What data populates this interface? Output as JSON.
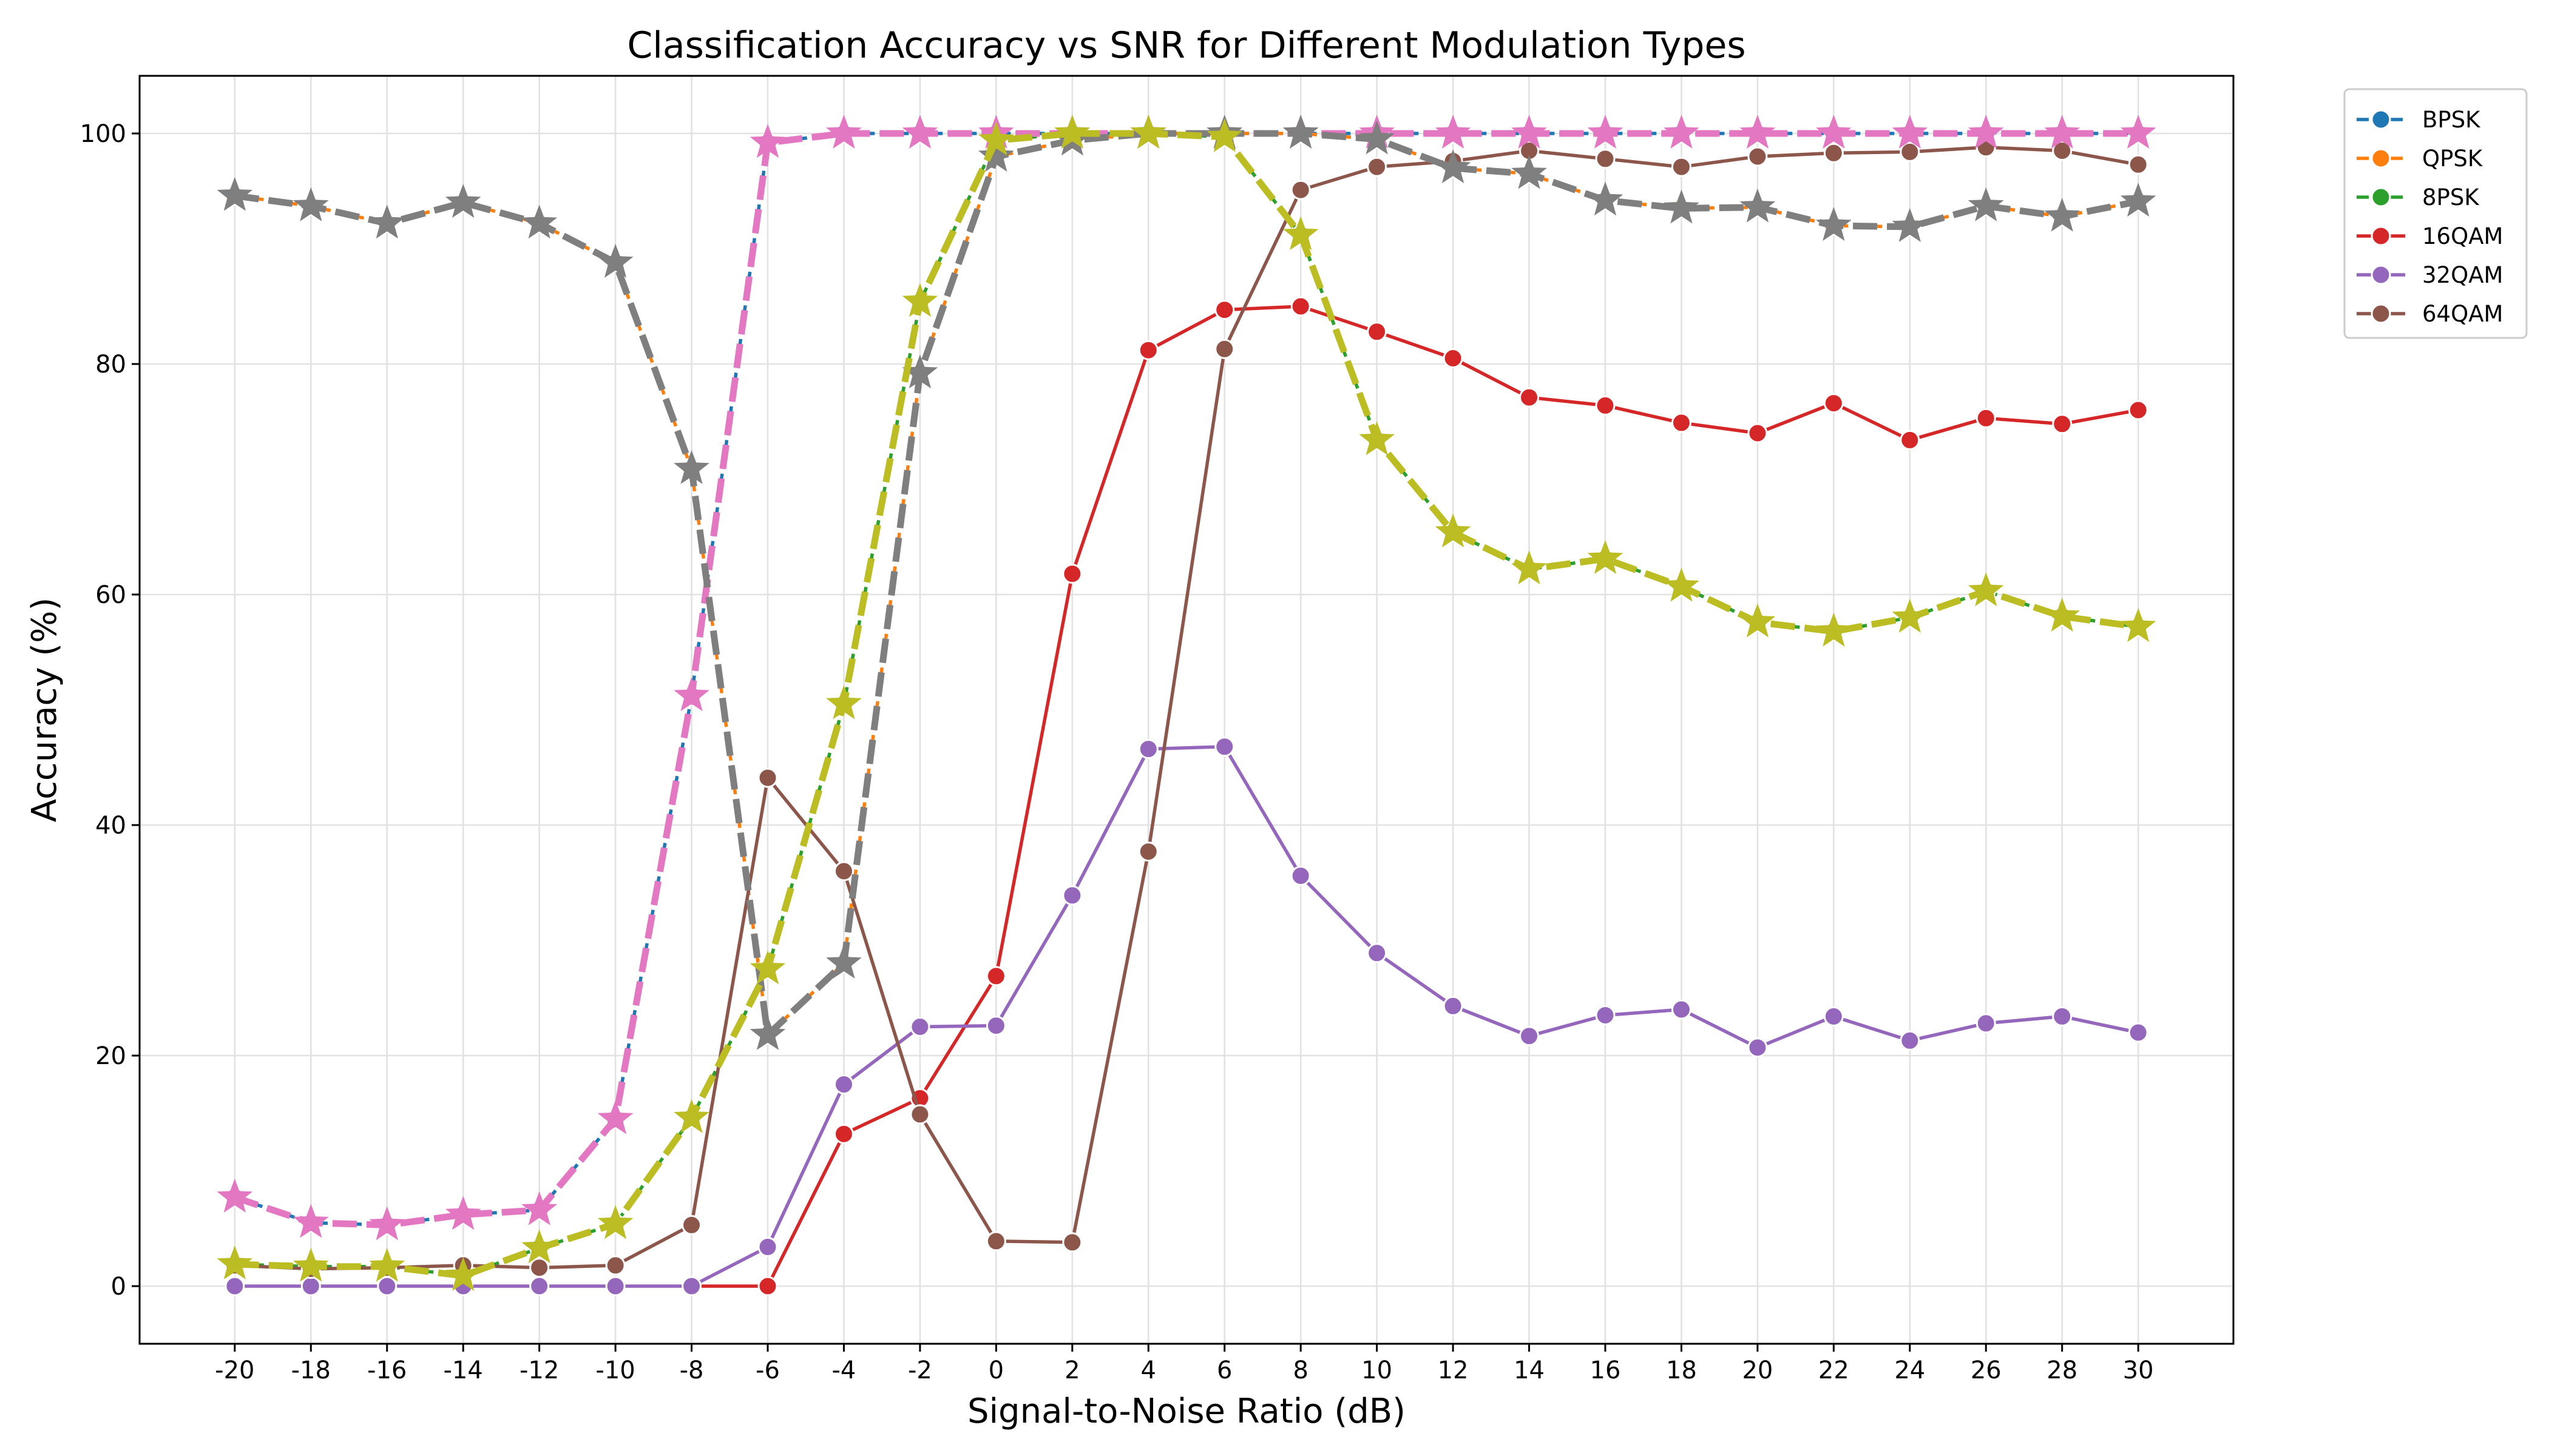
{
  "chart_data": {
    "type": "line",
    "title": "Classification Accuracy vs SNR for Different Modulation Types",
    "xlabel": "Signal-to-Noise Ratio (dB)",
    "ylabel": "Accuracy (%)",
    "xlim": [
      -22.5,
      32.5
    ],
    "ylim": [
      -5,
      105
    ],
    "x": [
      -20,
      -18,
      -16,
      -14,
      -12,
      -10,
      -8,
      -6,
      -4,
      -2,
      0,
      2,
      4,
      6,
      8,
      10,
      12,
      14,
      16,
      18,
      20,
      22,
      24,
      26,
      28,
      30
    ],
    "x_tick_labels": [
      "-20",
      "-18",
      "-16",
      "-14",
      "-12",
      "-10",
      "-8",
      "-6",
      "-4",
      "-2",
      "0",
      "2",
      "4",
      "6",
      "8",
      "10",
      "12",
      "14",
      "16",
      "18",
      "20",
      "22",
      "24",
      "26",
      "28",
      "30"
    ],
    "y_ticks": [
      0,
      20,
      40,
      60,
      80,
      100
    ],
    "y_tick_labels": [
      "0",
      "20",
      "40",
      "60",
      "80",
      "100"
    ],
    "grid": true,
    "legend_position": "outside top-right",
    "series": [
      {
        "name": "BPSK",
        "color": "#1f77b4",
        "style": "dashed",
        "marker": "circle",
        "in_legend": true,
        "values": [
          7.7,
          5.5,
          5.3,
          6.2,
          6.6,
          14.5,
          51.2,
          99.2,
          100,
          100,
          100,
          100,
          100,
          100,
          100,
          100,
          100,
          100,
          100,
          100,
          100,
          100,
          100,
          100,
          100,
          100
        ]
      },
      {
        "name": "QPSK",
        "color": "#ff7f0e",
        "style": "dashed",
        "marker": "circle",
        "in_legend": true,
        "values": [
          94.6,
          93.7,
          92.2,
          94.0,
          92.2,
          88.8,
          70.9,
          21.8,
          28.0,
          79.2,
          98.0,
          99.4,
          100,
          100,
          100,
          99.5,
          97.0,
          96.5,
          94.2,
          93.5,
          93.6,
          92.0,
          91.9,
          93.7,
          92.8,
          94.1
        ]
      },
      {
        "name": "8PSK",
        "color": "#2ca02c",
        "style": "dashed",
        "marker": "circle",
        "in_legend": true,
        "values": [
          1.9,
          1.7,
          1.7,
          0.9,
          3.3,
          5.4,
          14.6,
          27.5,
          50.5,
          85.4,
          99.4,
          100,
          100,
          99.7,
          91.2,
          73.4,
          65.4,
          62.2,
          63.1,
          60.7,
          57.6,
          56.8,
          58.0,
          60.3,
          58.1,
          57.2
        ]
      },
      {
        "name": "16QAM",
        "color": "#d62728",
        "style": "solid",
        "marker": "circle",
        "in_legend": true,
        "values": [
          null,
          null,
          null,
          null,
          null,
          null,
          0,
          0,
          13.2,
          16.3,
          26.9,
          61.8,
          81.2,
          84.7,
          85.0,
          82.8,
          80.5,
          77.1,
          76.4,
          74.9,
          74.0,
          76.6,
          73.4,
          75.3,
          74.8,
          76.0
        ]
      },
      {
        "name": "32QAM",
        "color": "#9467bd",
        "style": "solid",
        "marker": "circle",
        "in_legend": true,
        "values": [
          0,
          0,
          0,
          0,
          0,
          0,
          0,
          3.4,
          17.5,
          22.5,
          22.6,
          33.9,
          46.6,
          46.8,
          35.6,
          28.9,
          24.3,
          21.7,
          23.5,
          24.0,
          20.7,
          23.4,
          21.3,
          22.8,
          23.4,
          22.0
        ]
      },
      {
        "name": "64QAM",
        "color": "#8c564b",
        "style": "solid",
        "marker": "circle",
        "in_legend": true,
        "values": [
          1.8,
          1.5,
          1.6,
          1.8,
          1.6,
          1.8,
          5.3,
          44.1,
          36.0,
          14.9,
          3.9,
          3.8,
          37.7,
          81.3,
          95.1,
          97.1,
          97.6,
          98.5,
          97.8,
          97.1,
          98.0,
          98.3,
          98.4,
          98.8,
          98.5,
          97.3
        ]
      },
      {
        "name": "",
        "color": "#e377c2",
        "style": "dashed",
        "marker": "star",
        "in_legend": false,
        "values": [
          7.7,
          5.5,
          5.3,
          6.2,
          6.6,
          14.5,
          51.2,
          99.2,
          100,
          100,
          100,
          100,
          100,
          100,
          100,
          100,
          100,
          100,
          100,
          100,
          100,
          100,
          100,
          100,
          100,
          100
        ]
      },
      {
        "name": "",
        "color": "#7f7f7f",
        "style": "dashed",
        "marker": "star",
        "in_legend": false,
        "values": [
          94.6,
          93.7,
          92.2,
          94.0,
          92.2,
          88.8,
          70.9,
          21.8,
          28.0,
          79.2,
          98.0,
          99.4,
          100,
          100,
          100,
          99.5,
          97.0,
          96.5,
          94.2,
          93.5,
          93.6,
          92.0,
          91.9,
          93.7,
          92.8,
          94.1
        ]
      },
      {
        "name": "",
        "color": "#bcbd22",
        "style": "dashed",
        "marker": "star",
        "in_legend": false,
        "values": [
          1.9,
          1.7,
          1.7,
          0.9,
          3.3,
          5.4,
          14.6,
          27.5,
          50.5,
          85.4,
          99.4,
          100,
          100,
          99.7,
          91.2,
          73.4,
          65.4,
          62.2,
          63.1,
          60.7,
          57.6,
          56.8,
          58.0,
          60.3,
          58.1,
          57.2
        ]
      }
    ]
  }
}
